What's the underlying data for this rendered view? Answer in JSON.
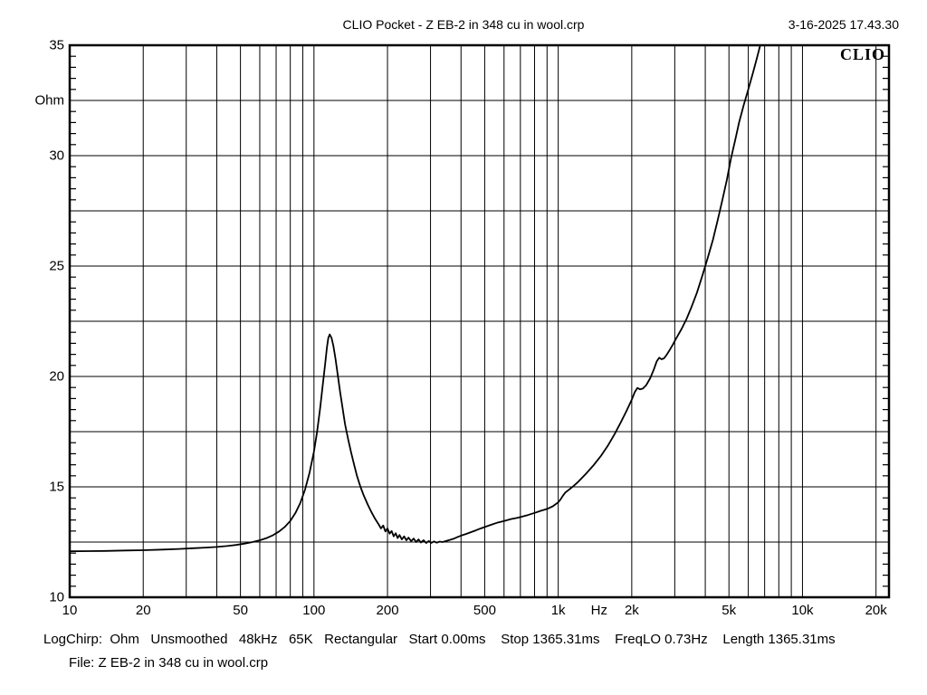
{
  "header": {
    "title": "CLIO Pocket - Z EB-2 in 348 cu in wool.crp",
    "datetime": "3-16-2025 17.43.30"
  },
  "logo_text": "CLIO",
  "status_line": "LogChirp:  Ohm   Unsmoothed   48kHz   65K   Rectangular   Start 0.00ms    Stop 1365.31ms    FreqLO 0.73Hz    Length 1365.31ms",
  "file_line": "File: Z EB-2 in 348 cu in wool.crp",
  "colors": {
    "background": "#ffffff",
    "grid": "#000000",
    "frame": "#000000",
    "curve": "#000000",
    "text": "#000000"
  },
  "chart_data": {
    "type": "line",
    "title": "CLIO Pocket - Z EB-2 in 348 cu in wool.crp",
    "x_scale": "log",
    "xlim": [
      10,
      22600
    ],
    "ylim": [
      10,
      35
    ],
    "xlabel": "Hz",
    "ylabel": "Ohm",
    "grid": "on",
    "y_grid_step": 2.5,
    "y_minor_tick_step": 0.5,
    "x_ticks": [
      {
        "f": 10,
        "label": "10"
      },
      {
        "f": 20,
        "label": "20"
      },
      {
        "f": 50,
        "label": "50"
      },
      {
        "f": 100,
        "label": "100"
      },
      {
        "f": 200,
        "label": "200"
      },
      {
        "f": 500,
        "label": "500"
      },
      {
        "f": 1000,
        "label": "1k"
      },
      {
        "f": 2000,
        "label": "2k"
      },
      {
        "f": 5000,
        "label": "5k"
      },
      {
        "f": 10000,
        "label": "10k"
      },
      {
        "f": 20000,
        "label": "20k"
      }
    ],
    "x_unit_label": {
      "text": "Hz",
      "f": 1470
    },
    "y_ticks": [
      {
        "v": 35,
        "label": "35"
      },
      {
        "v": 30,
        "label": "30"
      },
      {
        "v": 25,
        "label": "25"
      },
      {
        "v": 20,
        "label": "20"
      },
      {
        "v": 15,
        "label": "15"
      },
      {
        "v": 10,
        "label": "10"
      }
    ],
    "y_unit_label": {
      "text": "Ohm",
      "v": 32.5
    },
    "series": [
      {
        "name": "Z EB-2 in 348 cu in wool",
        "color": "#000000",
        "points": [
          [
            10,
            12.08
          ],
          [
            12,
            12.09
          ],
          [
            14,
            12.1
          ],
          [
            17,
            12.12
          ],
          [
            20,
            12.13
          ],
          [
            24,
            12.16
          ],
          [
            28,
            12.19
          ],
          [
            32,
            12.22
          ],
          [
            36,
            12.25
          ],
          [
            40,
            12.28
          ],
          [
            44,
            12.32
          ],
          [
            48,
            12.37
          ],
          [
            52,
            12.43
          ],
          [
            56,
            12.5
          ],
          [
            60,
            12.58
          ],
          [
            64,
            12.68
          ],
          [
            68,
            12.81
          ],
          [
            72,
            12.98
          ],
          [
            76,
            13.19
          ],
          [
            80,
            13.46
          ],
          [
            84,
            13.82
          ],
          [
            88,
            14.28
          ],
          [
            92,
            14.88
          ],
          [
            96,
            15.65
          ],
          [
            100,
            16.6
          ],
          [
            103,
            17.5
          ],
          [
            106,
            18.55
          ],
          [
            109,
            19.75
          ],
          [
            111,
            20.5
          ],
          [
            113,
            21.3
          ],
          [
            114.5,
            21.75
          ],
          [
            116,
            21.9
          ],
          [
            118,
            21.75
          ],
          [
            120,
            21.4
          ],
          [
            122.5,
            20.8
          ],
          [
            125,
            20.1
          ],
          [
            128,
            19.3
          ],
          [
            131,
            18.55
          ],
          [
            134,
            17.85
          ],
          [
            138,
            17.15
          ],
          [
            142,
            16.55
          ],
          [
            146,
            16.0
          ],
          [
            150,
            15.5
          ],
          [
            155,
            15.0
          ],
          [
            160,
            14.6
          ],
          [
            166,
            14.2
          ],
          [
            172,
            13.85
          ],
          [
            178,
            13.55
          ],
          [
            184,
            13.3
          ],
          [
            188,
            13.12
          ],
          [
            192,
            13.25
          ],
          [
            196,
            12.98
          ],
          [
            200,
            13.12
          ],
          [
            204,
            12.88
          ],
          [
            208,
            13.0
          ],
          [
            212,
            12.76
          ],
          [
            216,
            12.9
          ],
          [
            220,
            12.68
          ],
          [
            224,
            12.82
          ],
          [
            229,
            12.62
          ],
          [
            234,
            12.76
          ],
          [
            239,
            12.58
          ],
          [
            244,
            12.7
          ],
          [
            250,
            12.54
          ],
          [
            256,
            12.66
          ],
          [
            262,
            12.5
          ],
          [
            268,
            12.62
          ],
          [
            274,
            12.48
          ],
          [
            281,
            12.58
          ],
          [
            288,
            12.46
          ],
          [
            295,
            12.55
          ],
          [
            302,
            12.46
          ],
          [
            310,
            12.53
          ],
          [
            318,
            12.47
          ],
          [
            327,
            12.52
          ],
          [
            336,
            12.5
          ],
          [
            348,
            12.55
          ],
          [
            360,
            12.6
          ],
          [
            375,
            12.66
          ],
          [
            390,
            12.74
          ],
          [
            400,
            12.79
          ],
          [
            420,
            12.87
          ],
          [
            440,
            12.95
          ],
          [
            460,
            13.03
          ],
          [
            480,
            13.11
          ],
          [
            500,
            13.18
          ],
          [
            530,
            13.28
          ],
          [
            560,
            13.37
          ],
          [
            600,
            13.45
          ],
          [
            640,
            13.54
          ],
          [
            680,
            13.6
          ],
          [
            700,
            13.63
          ],
          [
            750,
            13.72
          ],
          [
            800,
            13.82
          ],
          [
            850,
            13.92
          ],
          [
            900,
            14.0
          ],
          [
            950,
            14.12
          ],
          [
            1000,
            14.3
          ],
          [
            1020,
            14.42
          ],
          [
            1045,
            14.6
          ],
          [
            1070,
            14.75
          ],
          [
            1100,
            14.85
          ],
          [
            1150,
            15.02
          ],
          [
            1200,
            15.2
          ],
          [
            1300,
            15.6
          ],
          [
            1400,
            16.0
          ],
          [
            1500,
            16.42
          ],
          [
            1600,
            16.88
          ],
          [
            1700,
            17.38
          ],
          [
            1800,
            17.9
          ],
          [
            1900,
            18.42
          ],
          [
            2000,
            18.95
          ],
          [
            2060,
            19.3
          ],
          [
            2110,
            19.48
          ],
          [
            2160,
            19.42
          ],
          [
            2220,
            19.45
          ],
          [
            2290,
            19.6
          ],
          [
            2380,
            19.92
          ],
          [
            2460,
            20.3
          ],
          [
            2530,
            20.68
          ],
          [
            2590,
            20.85
          ],
          [
            2650,
            20.78
          ],
          [
            2710,
            20.82
          ],
          [
            2780,
            20.98
          ],
          [
            2860,
            21.2
          ],
          [
            2950,
            21.45
          ],
          [
            3050,
            21.75
          ],
          [
            3200,
            22.15
          ],
          [
            3350,
            22.6
          ],
          [
            3500,
            23.1
          ],
          [
            3700,
            23.8
          ],
          [
            3900,
            24.6
          ],
          [
            4100,
            25.4
          ],
          [
            4300,
            26.2
          ],
          [
            4500,
            27.1
          ],
          [
            4700,
            28.0
          ],
          [
            4900,
            28.9
          ],
          [
            5100,
            29.9
          ],
          [
            5300,
            30.7
          ],
          [
            5500,
            31.5
          ],
          [
            5750,
            32.3
          ],
          [
            6000,
            33.0
          ],
          [
            6250,
            33.7
          ],
          [
            6500,
            34.4
          ],
          [
            6750,
            35.1
          ],
          [
            6900,
            35.6
          ]
        ]
      }
    ]
  }
}
